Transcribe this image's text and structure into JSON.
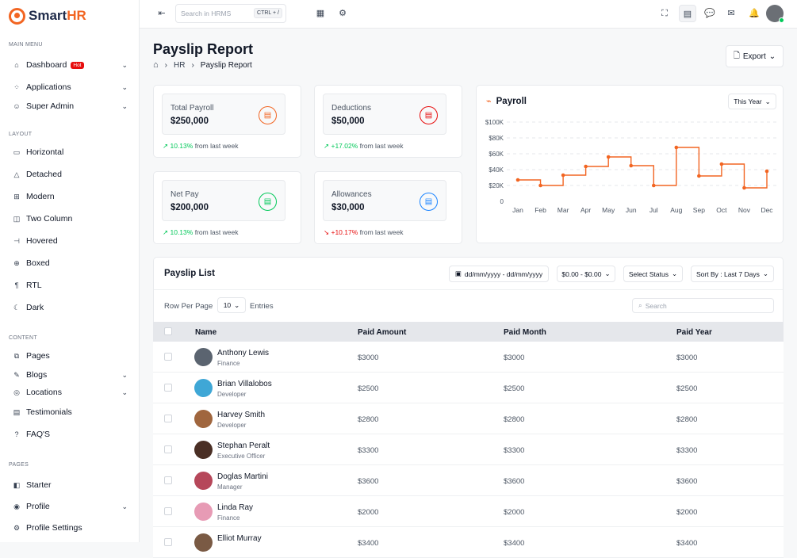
{
  "brand": {
    "name_main": "Smart",
    "name_accent": "HR"
  },
  "sidebar": {
    "sections": [
      "MAIN MENU",
      "LAYOUT",
      "CONTENT",
      "PAGES"
    ],
    "main": [
      {
        "label": "Dashboard",
        "badge": "Hot",
        "icon": "home-icon",
        "chevron": true
      },
      {
        "label": "Applications",
        "icon": "apps-icon",
        "chevron": true
      },
      {
        "label": "Super Admin",
        "icon": "user-star-icon",
        "chevron": true
      }
    ],
    "layout": [
      {
        "label": "Horizontal",
        "icon": "layout-horizontal-icon"
      },
      {
        "label": "Detached",
        "icon": "layout-detached-icon"
      },
      {
        "label": "Modern",
        "icon": "layout-modern-icon"
      },
      {
        "label": "Two Column",
        "icon": "layout-two-column-icon"
      },
      {
        "label": "Hovered",
        "icon": "layout-hovered-icon"
      },
      {
        "label": "Boxed",
        "icon": "layout-boxed-icon"
      },
      {
        "label": "RTL",
        "icon": "text-direction-icon"
      },
      {
        "label": "Dark",
        "icon": "moon-icon"
      }
    ],
    "content": [
      {
        "label": "Pages",
        "icon": "pages-icon",
        "chevron": false
      },
      {
        "label": "Blogs",
        "icon": "blog-icon",
        "chevron": true
      },
      {
        "label": "Locations",
        "icon": "location-icon",
        "chevron": true
      },
      {
        "label": "Testimonials",
        "icon": "message-icon",
        "chevron": false
      },
      {
        "label": "FAQ'S",
        "icon": "question-icon",
        "chevron": false
      }
    ],
    "pages": [
      {
        "label": "Starter",
        "icon": "layout-icon",
        "chevron": false
      },
      {
        "label": "Profile",
        "icon": "user-circle-icon",
        "chevron": true
      },
      {
        "label": "Profile Settings",
        "icon": "user-settings-icon",
        "chevron": false
      }
    ]
  },
  "topbar": {
    "search_placeholder": "Search in HRMS",
    "shortcut": "CTRL + /"
  },
  "page": {
    "title": "Payslip Report",
    "breadcrumb": [
      "HR",
      "Payslip Report"
    ],
    "export_label": "Export"
  },
  "stats": [
    {
      "label": "Total Payroll",
      "value": "$250,000",
      "change": "10.13%",
      "trend": "up",
      "suffix": "from last week",
      "color": "#f26522"
    },
    {
      "label": "Deductions",
      "value": "$50,000",
      "change": "+17.02%",
      "trend": "up",
      "suffix": "from last week",
      "color": "#e70d0d"
    },
    {
      "label": "Net Pay",
      "value": "$200,000",
      "change": "10.13%",
      "trend": "up",
      "suffix": "from last week",
      "color": "#03c95a"
    },
    {
      "label": "Allowances",
      "value": "$30,000",
      "change": "+10.17%",
      "trend": "down",
      "suffix": "from last week",
      "color": "#1b84ff"
    }
  ],
  "chart_card": {
    "title": "Payroll",
    "filter": "This Year"
  },
  "chart_data": {
    "type": "line",
    "step": true,
    "categories": [
      "Jan",
      "Feb",
      "Mar",
      "Apr",
      "May",
      "Jun",
      "Jul",
      "Aug",
      "Sep",
      "Oct",
      "Nov",
      "Dec"
    ],
    "values": [
      27000,
      20000,
      33000,
      44000,
      56000,
      45000,
      20000,
      68000,
      32000,
      47000,
      17000,
      38000
    ],
    "yticks": [
      "0",
      "$20K",
      "$40K",
      "$60K",
      "$80K",
      "$100K"
    ],
    "ylim": [
      0,
      100000
    ],
    "grid": true,
    "color": "#f26522"
  },
  "payslip": {
    "title": "Payslip List",
    "date_range": "dd/mm/yyyy - dd/mm/yyyy",
    "amount_filter": "$0.00 - $0.00",
    "status_filter": "Select Status",
    "sort_label": "Sort By : Last 7 Days",
    "rows_per_page_label": "Row Per Page",
    "rows_per_page": "10",
    "entries_label": "Entries",
    "search_placeholder": "Search",
    "columns": [
      "Name",
      "Paid Amount",
      "Paid Month",
      "Paid Year"
    ],
    "rows": [
      {
        "name": "Anthony Lewis",
        "role": "Finance",
        "amount": "$3000",
        "month": "$3000",
        "year": "$3000",
        "avatar": "#5b6470"
      },
      {
        "name": "Brian Villalobos",
        "role": "Developer",
        "amount": "$2500",
        "month": "$2500",
        "year": "$2500",
        "avatar": "#3fa7d6"
      },
      {
        "name": "Harvey Smith",
        "role": "Developer",
        "amount": "$2800",
        "month": "$2800",
        "year": "$2800",
        "avatar": "#a0663e"
      },
      {
        "name": "Stephan Peralt",
        "role": "Executive Officer",
        "amount": "$3300",
        "month": "$3300",
        "year": "$3300",
        "avatar": "#4a2f25"
      },
      {
        "name": "Doglas Martini",
        "role": "Manager",
        "amount": "$3600",
        "month": "$3600",
        "year": "$3600",
        "avatar": "#b6475a"
      },
      {
        "name": "Linda Ray",
        "role": "Finance",
        "amount": "$2000",
        "month": "$2000",
        "year": "$2000",
        "avatar": "#e79bb5"
      },
      {
        "name": "Elliot Murray",
        "role": "",
        "amount": "$3400",
        "month": "$3400",
        "year": "$3400",
        "avatar": "#7a5a44"
      }
    ]
  }
}
